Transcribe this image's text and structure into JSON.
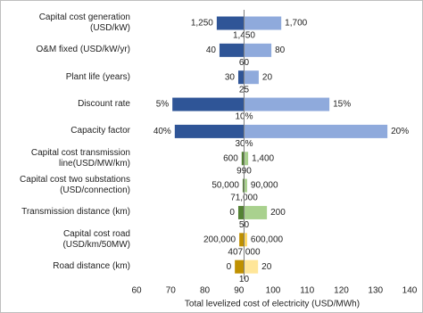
{
  "chart_data": {
    "type": "tornado",
    "categories": [
      "Capital cost generation (USD/kW)",
      "O&M fixed (USD/kW/yr)",
      "Plant life (years)",
      "Discount rate",
      "Capacity factor",
      "Capital cost transmission line(USD/MW/km)",
      "Capital cost two substations (USD/connection)",
      "Transmission distance (km)",
      "Capital cost road (USD/km/50MW)",
      "Road distance (km)"
    ],
    "base": 91.5,
    "mid_labels": [
      "1,450",
      "60",
      "25",
      "10%",
      "30%",
      "990",
      "71,000",
      "50",
      "407,000",
      "10"
    ],
    "series": [
      {
        "values": [
          83.5,
          84.3,
          89.8,
          70.5,
          71.2,
          90.8,
          91.1,
          89.8,
          90.1,
          88.8
        ],
        "value_labels": [
          "1,250",
          "40",
          "30",
          "5%",
          "40%",
          "600",
          "50,000",
          "0",
          "200,000",
          "0"
        ],
        "colors": [
          "#2f5597",
          "#2f5597",
          "#2f5597",
          "#2f5597",
          "#2f5597",
          "#548235",
          "#548235",
          "#548235",
          "#bf9000",
          "#bf9000"
        ]
      },
      {
        "values": [
          102.4,
          99.5,
          95.8,
          116.5,
          133.5,
          92.7,
          92.4,
          98.2,
          92.4,
          95.6
        ],
        "value_labels": [
          "1,700",
          "80",
          "20",
          "15%",
          "20%",
          "1,400",
          "90,000",
          "200",
          "600,000",
          "20"
        ],
        "colors": [
          "#8faadc",
          "#8faadc",
          "#8faadc",
          "#8faadc",
          "#8faadc",
          "#a9d18e",
          "#a9d18e",
          "#a9d18e",
          "#ffd966",
          "#ffe699"
        ]
      }
    ],
    "xlabel": "Total levelized cost of electricity (USD/MWh)",
    "xlim": [
      60,
      140
    ],
    "xticks": [
      60,
      70,
      80,
      90,
      100,
      110,
      120,
      130,
      140
    ]
  }
}
